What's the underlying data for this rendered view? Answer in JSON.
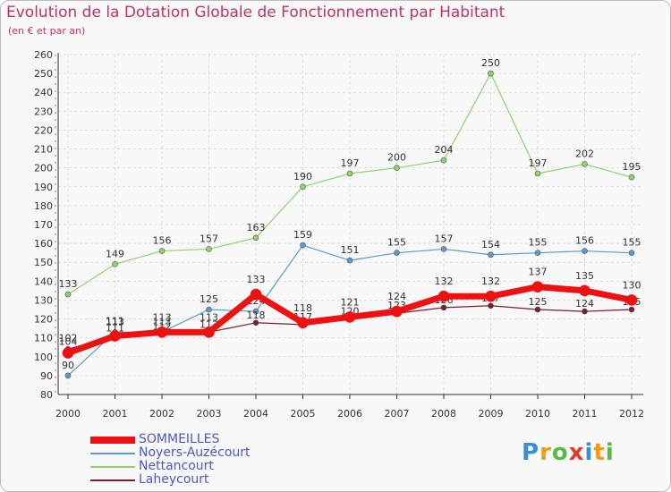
{
  "chart_data": {
    "type": "line",
    "title": "Evolution de la Dotation Globale de Fonctionnement par Habitant",
    "subtitle": "(en € et par an)",
    "xlabel": "",
    "ylabel": "",
    "categories": [
      "2000",
      "2001",
      "2002",
      "2003",
      "2004",
      "2005",
      "2006",
      "2007",
      "2008",
      "2009",
      "2010",
      "2011",
      "2012"
    ],
    "ylim": [
      80,
      260
    ],
    "yticks": [
      80,
      90,
      100,
      110,
      120,
      130,
      140,
      150,
      160,
      170,
      180,
      190,
      200,
      210,
      220,
      230,
      240,
      250,
      260
    ],
    "grid": true,
    "series": [
      {
        "name": "Nettancourt",
        "color": "#8ed36b",
        "values": [
          133,
          149,
          156,
          157,
          163,
          190,
          197,
          200,
          204,
          250,
          197,
          202,
          195
        ]
      },
      {
        "name": "Noyers-Auzécourt",
        "color": "#5b9bd0",
        "values": [
          90,
          113,
          113,
          125,
          124,
          159,
          151,
          155,
          157,
          154,
          155,
          156,
          155
        ]
      },
      {
        "name": "Laheycourt",
        "color": "#7a1f2e",
        "values": [
          104,
          111,
          112,
          113,
          118,
          117,
          120,
          123,
          126,
          127,
          125,
          124,
          125
        ]
      },
      {
        "name": "SOMMEILLES",
        "color": "#ee1111",
        "values": [
          102,
          111,
          113,
          113,
          133,
          118,
          121,
          124,
          132,
          132,
          137,
          135,
          130
        ]
      }
    ],
    "legend_order": [
      "SOMMEILLES",
      "Noyers-Auzécourt",
      "Nettancourt",
      "Laheycourt"
    ]
  },
  "logo": {
    "letters": [
      "P",
      "r",
      "o",
      "x",
      "i",
      "t",
      "i"
    ],
    "colors": [
      "#3a8fd0",
      "#f29a1a",
      "#59b847",
      "#e33b2a",
      "#3a8fd0",
      "#f29a1a",
      "#59b847"
    ]
  }
}
